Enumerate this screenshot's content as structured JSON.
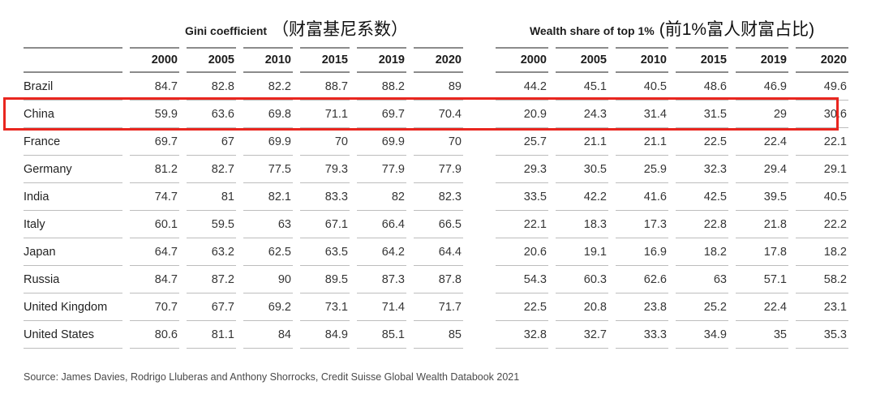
{
  "chart_data": {
    "type": "table",
    "group_headers": [
      {
        "title_en": "Gini coefficient",
        "title_zh": "（财富基尼系数）"
      },
      {
        "title_en": "Wealth share of top 1%",
        "title_zh": "(前1%富人财富占比)"
      }
    ],
    "years": [
      "2000",
      "2005",
      "2010",
      "2015",
      "2019",
      "2020"
    ],
    "rows": [
      {
        "country": "Brazil",
        "gini": [
          "84.7",
          "82.8",
          "82.2",
          "88.7",
          "88.2",
          "89"
        ],
        "wealth": [
          "44.2",
          "45.1",
          "40.5",
          "48.6",
          "46.9",
          "49.6"
        ],
        "highlighted": false
      },
      {
        "country": "China",
        "gini": [
          "59.9",
          "63.6",
          "69.8",
          "71.1",
          "69.7",
          "70.4"
        ],
        "wealth": [
          "20.9",
          "24.3",
          "31.4",
          "31.5",
          "29",
          "30.6"
        ],
        "highlighted": true
      },
      {
        "country": "France",
        "gini": [
          "69.7",
          "67",
          "69.9",
          "70",
          "69.9",
          "70"
        ],
        "wealth": [
          "25.7",
          "21.1",
          "21.1",
          "22.5",
          "22.4",
          "22.1"
        ],
        "highlighted": false
      },
      {
        "country": "Germany",
        "gini": [
          "81.2",
          "82.7",
          "77.5",
          "79.3",
          "77.9",
          "77.9"
        ],
        "wealth": [
          "29.3",
          "30.5",
          "25.9",
          "32.3",
          "29.4",
          "29.1"
        ],
        "highlighted": false
      },
      {
        "country": "India",
        "gini": [
          "74.7",
          "81",
          "82.1",
          "83.3",
          "82",
          "82.3"
        ],
        "wealth": [
          "33.5",
          "42.2",
          "41.6",
          "42.5",
          "39.5",
          "40.5"
        ],
        "highlighted": false
      },
      {
        "country": "Italy",
        "gini": [
          "60.1",
          "59.5",
          "63",
          "67.1",
          "66.4",
          "66.5"
        ],
        "wealth": [
          "22.1",
          "18.3",
          "17.3",
          "22.8",
          "21.8",
          "22.2"
        ],
        "highlighted": false
      },
      {
        "country": "Japan",
        "gini": [
          "64.7",
          "63.2",
          "62.5",
          "63.5",
          "64.2",
          "64.4"
        ],
        "wealth": [
          "20.6",
          "19.1",
          "16.9",
          "18.2",
          "17.8",
          "18.2"
        ],
        "highlighted": false
      },
      {
        "country": "Russia",
        "gini": [
          "84.7",
          "87.2",
          "90",
          "89.5",
          "87.3",
          "87.8"
        ],
        "wealth": [
          "54.3",
          "60.3",
          "62.6",
          "63",
          "57.1",
          "58.2"
        ],
        "highlighted": false
      },
      {
        "country": "United Kingdom",
        "gini": [
          "70.7",
          "67.7",
          "69.2",
          "73.1",
          "71.4",
          "71.7"
        ],
        "wealth": [
          "22.5",
          "20.8",
          "23.8",
          "25.2",
          "22.4",
          "23.1"
        ],
        "highlighted": false
      },
      {
        "country": "United States",
        "gini": [
          "80.6",
          "81.1",
          "84",
          "84.9",
          "85.1",
          "85"
        ],
        "wealth": [
          "32.8",
          "32.7",
          "33.3",
          "34.9",
          "35",
          "35.3"
        ],
        "highlighted": false
      }
    ],
    "source": "Source: James Davies, Rodrigo Lluberas and Anthony Shorrocks, Credit Suisse Global Wealth Databook 2021",
    "highlight_color": "#e9261f"
  }
}
